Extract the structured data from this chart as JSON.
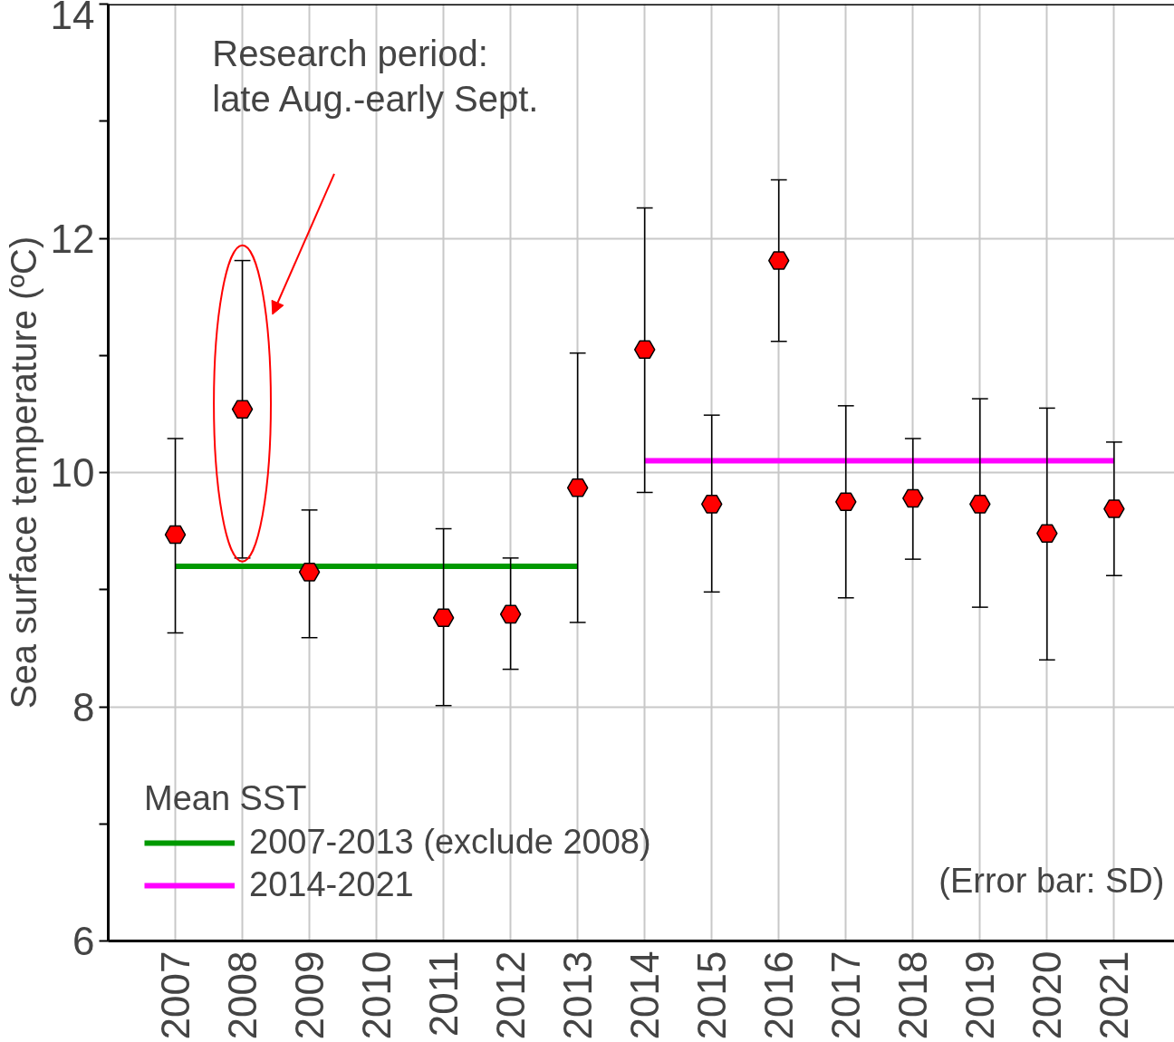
{
  "chart_data": {
    "type": "scatter",
    "ylabel": "Sea surface temperature (ºC)",
    "x": [
      2007,
      2008,
      2009,
      2010,
      2011,
      2012,
      2013,
      2014,
      2015,
      2016,
      2017,
      2018,
      2019,
      2020,
      2021
    ],
    "xlim": [
      2006,
      2021.9
    ],
    "xticks": [
      2007,
      2008,
      2009,
      2010,
      2011,
      2012,
      2013,
      2014,
      2015,
      2016,
      2017,
      2018,
      2019,
      2020,
      2021
    ],
    "series": [
      {
        "color": "#ff0000",
        "marker": "circle",
        "values": [
          9.47,
          10.54,
          9.15,
          null,
          8.76,
          8.79,
          9.87,
          11.05,
          9.73,
          11.81,
          9.75,
          9.78,
          9.73,
          9.48,
          9.69
        ],
        "errors": [
          [
            8.63,
            10.29
          ],
          [
            9.27,
            11.81
          ],
          [
            8.59,
            9.68
          ],
          null,
          [
            8.01,
            9.52
          ],
          [
            8.32,
            9.27
          ],
          [
            8.72,
            11.02
          ],
          [
            9.83,
            12.26
          ],
          [
            8.98,
            10.49
          ],
          [
            11.12,
            12.5
          ],
          [
            8.93,
            10.57
          ],
          [
            9.26,
            10.29
          ],
          [
            8.85,
            10.63
          ],
          [
            8.4,
            10.55
          ],
          [
            9.12,
            10.26
          ]
        ]
      },
      {
        "type": "line",
        "name": "2007-2013 (exclude 2008)",
        "color": "#009900",
        "x": [
          2007,
          2013
        ],
        "values": [
          9.2,
          9.2
        ]
      },
      {
        "type": "line",
        "name": "2014-2021",
        "color": "#ff00ff",
        "x": [
          2014,
          2021
        ],
        "values": [
          10.1,
          10.1
        ]
      }
    ],
    "legend_title": "Mean SST",
    "legend": "bottom left",
    "ylim": [
      6,
      14
    ],
    "yticks": [
      6,
      {
        "value": 7,
        "label": null
      },
      8,
      {
        "value": 9,
        "label": null
      },
      10,
      {
        "value": 11,
        "label": null
      },
      12,
      {
        "value": 13,
        "label": null
      },
      14
    ],
    "grid": true,
    "annotations": [
      "Research period:\nlate Aug.-early Sept.",
      "(Error bar: SD)"
    ]
  }
}
